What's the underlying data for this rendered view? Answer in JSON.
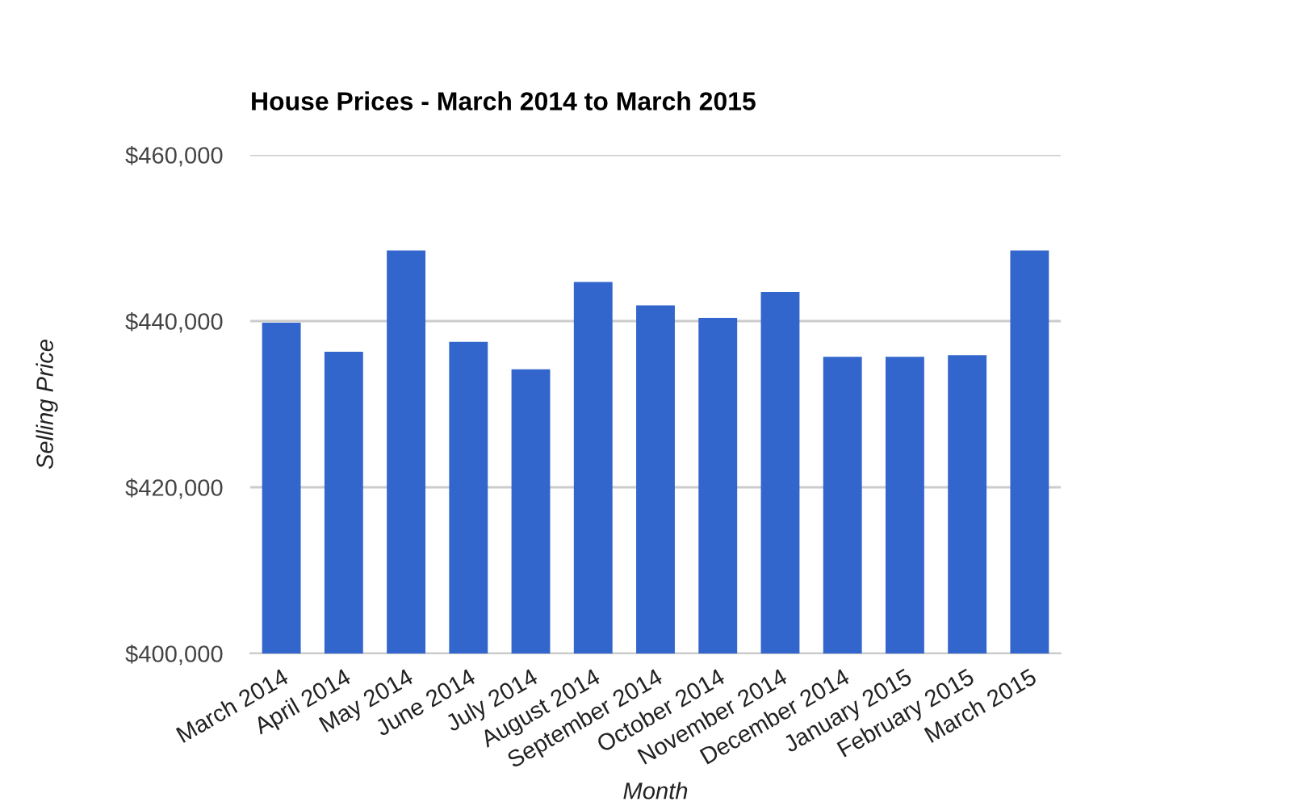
{
  "chart_data": {
    "type": "bar",
    "title": "House Prices - March 2014 to March 2015",
    "xlabel": "Month",
    "ylabel": "Selling Price",
    "categories": [
      "March 2014",
      "April 2014",
      "May 2014",
      "June 2014",
      "July 2014",
      "August 2014",
      "September 2014",
      "October 2014",
      "November 2014",
      "December 2014",
      "January 2015",
      "February 2015",
      "March 2015"
    ],
    "values": [
      439800,
      436300,
      448500,
      437500,
      434200,
      444700,
      441900,
      440400,
      443500,
      435700,
      435700,
      435900,
      448500
    ],
    "color": "#3366cc",
    "ylim": [
      400000,
      460000
    ],
    "yticks": [
      {
        "value": 400000,
        "label": "$400,000"
      },
      {
        "value": 420000,
        "label": "$420,000"
      },
      {
        "value": 440000,
        "label": "$440,000"
      },
      {
        "value": 460000,
        "label": "$460,000"
      }
    ],
    "grid": "y",
    "legend": false
  }
}
